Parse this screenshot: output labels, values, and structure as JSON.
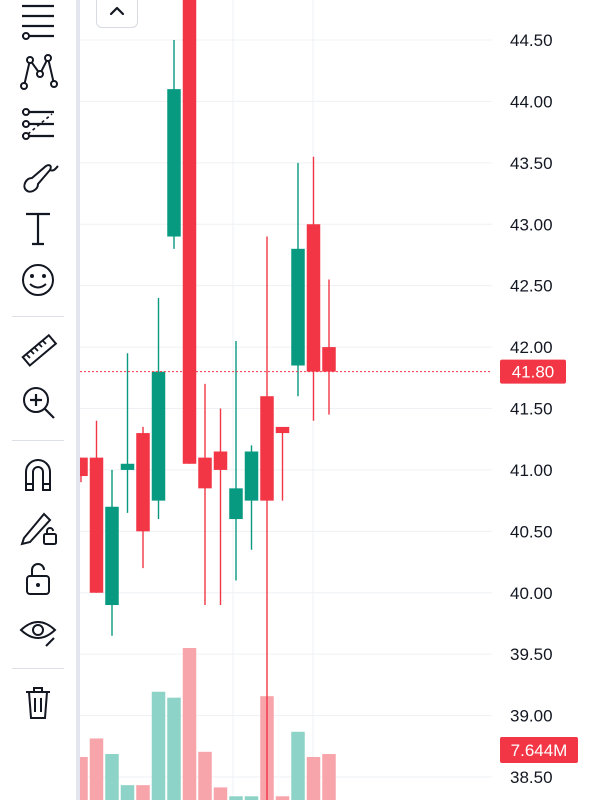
{
  "toolbar": {
    "tools": [
      {
        "icon": "trend-lines-icon",
        "label": ""
      },
      {
        "icon": "patterns-icon",
        "label": ""
      },
      {
        "icon": "fibonacci-icon",
        "label": ""
      },
      {
        "icon": "brush-icon",
        "label": ""
      },
      {
        "icon": "text-icon",
        "label": "T"
      },
      {
        "icon": "emoji-icon",
        "label": ""
      },
      {
        "icon": "ruler-icon",
        "label": ""
      },
      {
        "icon": "zoom-in-icon",
        "label": ""
      },
      {
        "icon": "magnet-icon",
        "label": ""
      },
      {
        "icon": "lock-drawings-icon",
        "label": ""
      },
      {
        "icon": "unlock-icon",
        "label": ""
      },
      {
        "icon": "eye-icon",
        "label": ""
      },
      {
        "icon": "trash-icon",
        "label": ""
      }
    ]
  },
  "collapse_button": {
    "icon": "chevron-up-icon"
  },
  "colors": {
    "up": "#089981",
    "down": "#f23645",
    "up_volume": "#8dd3c7",
    "down_volume": "#f7a4ab",
    "grid": "#eef0f4",
    "axis_text": "#131722"
  },
  "chart_data": {
    "type": "candlestick",
    "y_axis": {
      "ticks": [
        "44.50",
        "44.00",
        "43.50",
        "43.00",
        "42.50",
        "42.00",
        "41.50",
        "41.00",
        "40.50",
        "40.00",
        "39.50",
        "39.00",
        "38.50"
      ],
      "min": 38.4,
      "max": 44.8
    },
    "current_price": {
      "label": "41.80",
      "value": 41.8
    },
    "volume_label": "7.644M",
    "candles": [
      {
        "o": 41.1,
        "h": 41.1,
        "l": 40.9,
        "c": 40.95,
        "v": 0.58
      },
      {
        "o": 41.1,
        "h": 41.4,
        "l": 40.0,
        "c": 40.0,
        "v": 0.83
      },
      {
        "o": 39.9,
        "h": 41.0,
        "l": 39.65,
        "c": 40.7,
        "v": 0.62
      },
      {
        "o": 41.0,
        "h": 41.95,
        "l": 40.65,
        "c": 41.05,
        "v": 0.2
      },
      {
        "o": 41.3,
        "h": 41.35,
        "l": 40.2,
        "c": 40.5,
        "v": 0.2
      },
      {
        "o": 40.75,
        "h": 42.4,
        "l": 40.6,
        "c": 41.8,
        "v": 1.46
      },
      {
        "o": 42.9,
        "h": 44.5,
        "l": 42.8,
        "c": 44.1,
        "v": 1.38
      },
      {
        "o": 45.4,
        "h": 45.6,
        "l": 41.05,
        "c": 41.05,
        "v": 2.05
      },
      {
        "o": 41.1,
        "h": 41.7,
        "l": 39.9,
        "c": 40.85,
        "v": 0.65
      },
      {
        "o": 41.15,
        "h": 41.5,
        "l": 39.9,
        "c": 41.0,
        "v": 0.17
      },
      {
        "o": 40.6,
        "h": 42.05,
        "l": 40.1,
        "c": 40.85,
        "v": 0.05
      },
      {
        "o": 40.75,
        "h": 41.2,
        "l": 40.35,
        "c": 41.15,
        "v": 0.05
      },
      {
        "o": 41.6,
        "h": 42.9,
        "l": 38.0,
        "c": 40.75,
        "v": 1.4
      },
      {
        "o": 41.35,
        "h": 41.35,
        "l": 40.75,
        "c": 41.3,
        "v": 0.05
      },
      {
        "o": 41.85,
        "h": 43.5,
        "l": 41.6,
        "c": 42.8,
        "v": 0.92
      },
      {
        "o": 43.0,
        "h": 43.55,
        "l": 41.4,
        "c": 41.8,
        "v": 0.58
      },
      {
        "o": 42.0,
        "h": 42.55,
        "l": 41.45,
        "c": 41.8,
        "v": 0.62
      }
    ]
  }
}
